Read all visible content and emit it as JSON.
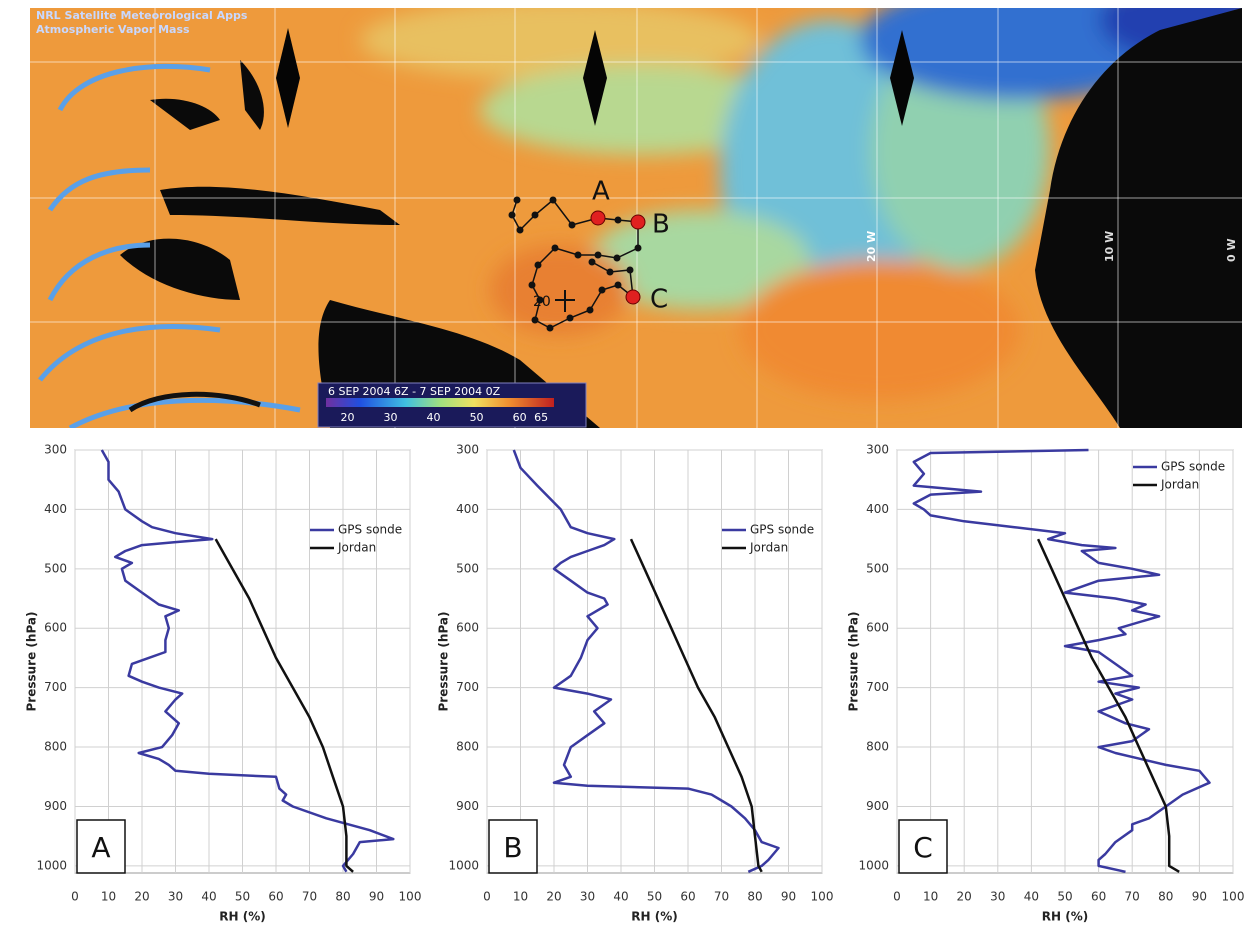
{
  "map": {
    "title": [
      "NRL Satellite Meteorological Apps",
      "Atmospheric Vapor Mass"
    ],
    "colorbar": {
      "label": "6 SEP 2004 6Z - 7 SEP 2004 0Z",
      "lim": [
        15,
        68
      ],
      "ticks": [
        20,
        30,
        40,
        50,
        60,
        65
      ]
    },
    "stations": [
      "A",
      "B",
      "C"
    ],
    "marker": "20",
    "longitudes": [
      "10 W",
      "0 W",
      "20 W"
    ]
  },
  "chart_data": [
    {
      "type": "line",
      "panel": "A",
      "xlabel": "RH (%)",
      "ylabel": "Pressure (hPa)",
      "xlim": [
        0,
        100
      ],
      "xticks": [
        0,
        10,
        20,
        30,
        40,
        50,
        60,
        70,
        80,
        90,
        100
      ],
      "ylim": [
        1012,
        300
      ],
      "yticks": [
        300,
        400,
        500,
        600,
        700,
        800,
        900,
        1000
      ],
      "grid": true,
      "legend": "center right",
      "series": [
        {
          "name": "GPS sonde",
          "color": "#3a3aa0",
          "x": [
            8,
            10,
            10,
            13,
            15,
            20,
            23,
            30,
            41,
            30,
            20,
            15,
            12,
            17,
            14,
            15,
            20,
            25,
            31,
            27,
            28,
            27,
            27,
            22,
            17,
            16,
            20,
            25,
            32,
            30,
            27,
            31,
            29,
            26,
            19,
            25,
            28,
            30,
            40,
            60,
            61,
            63,
            62,
            65,
            75,
            88,
            95,
            85,
            83,
            80,
            81
          ],
          "y": [
            300,
            320,
            350,
            370,
            400,
            420,
            430,
            440,
            450,
            455,
            460,
            470,
            480,
            490,
            500,
            520,
            540,
            560,
            570,
            580,
            600,
            620,
            640,
            650,
            660,
            680,
            690,
            700,
            710,
            720,
            740,
            760,
            780,
            800,
            810,
            820,
            830,
            840,
            845,
            850,
            870,
            880,
            890,
            900,
            920,
            940,
            955,
            960,
            980,
            1000,
            1010
          ]
        },
        {
          "name": "Jordan",
          "color": "#111111",
          "x": [
            42,
            47,
            52,
            56,
            60,
            65,
            70,
            74,
            77,
            80,
            81,
            81,
            83
          ],
          "y": [
            450,
            500,
            550,
            600,
            650,
            700,
            750,
            800,
            850,
            900,
            950,
            1000,
            1010
          ]
        }
      ]
    },
    {
      "type": "line",
      "panel": "B",
      "xlabel": "RH (%)",
      "ylabel": "Pressure (hPa)",
      "xlim": [
        0,
        100
      ],
      "xticks": [
        0,
        10,
        20,
        30,
        40,
        50,
        60,
        70,
        80,
        90,
        100
      ],
      "ylim": [
        1012,
        300
      ],
      "yticks": [
        300,
        400,
        500,
        600,
        700,
        800,
        900,
        1000
      ],
      "grid": true,
      "legend": "center right",
      "series": [
        {
          "name": "GPS sonde",
          "color": "#3a3aa0",
          "x": [
            8,
            10,
            15,
            22,
            25,
            30,
            38,
            35,
            30,
            25,
            22,
            20,
            25,
            30,
            35,
            36,
            30,
            33,
            30,
            28,
            25,
            20,
            30,
            37,
            32,
            35,
            30,
            25,
            23,
            25,
            20,
            30,
            60,
            67,
            70,
            73,
            77,
            80,
            82,
            87,
            84,
            82,
            78
          ],
          "y": [
            300,
            330,
            360,
            400,
            430,
            440,
            450,
            460,
            470,
            480,
            490,
            500,
            520,
            540,
            550,
            560,
            580,
            600,
            620,
            650,
            680,
            700,
            710,
            720,
            740,
            760,
            780,
            800,
            830,
            850,
            860,
            865,
            870,
            880,
            890,
            900,
            920,
            940,
            960,
            970,
            990,
            1000,
            1010
          ]
        },
        {
          "name": "Jordan",
          "color": "#111111",
          "x": [
            43,
            47,
            51,
            55,
            59,
            63,
            68,
            72,
            76,
            79,
            80,
            81,
            82
          ],
          "y": [
            450,
            500,
            550,
            600,
            650,
            700,
            750,
            800,
            850,
            900,
            950,
            1000,
            1010
          ]
        }
      ]
    },
    {
      "type": "line",
      "panel": "C",
      "xlabel": "RH (%)",
      "ylabel": "Pressure (hPa)",
      "xlim": [
        0,
        100
      ],
      "xticks": [
        0,
        10,
        20,
        30,
        40,
        50,
        60,
        70,
        80,
        90,
        100
      ],
      "ylim": [
        1012,
        300
      ],
      "yticks": [
        300,
        400,
        500,
        600,
        700,
        800,
        900,
        1000
      ],
      "grid": true,
      "legend": "upper right",
      "series": [
        {
          "name": "GPS sonde",
          "color": "#3a3aa0",
          "x": [
            57,
            10,
            5,
            8,
            5,
            25,
            10,
            5,
            8,
            10,
            20,
            35,
            50,
            45,
            55,
            65,
            55,
            60,
            70,
            78,
            60,
            50,
            65,
            74,
            70,
            78,
            66,
            68,
            60,
            50,
            60,
            65,
            70,
            60,
            72,
            65,
            70,
            60,
            68,
            75,
            70,
            60,
            65,
            80,
            90,
            93,
            85,
            80,
            75,
            70,
            70,
            65,
            62,
            60,
            60,
            68
          ],
          "y": [
            300,
            305,
            320,
            340,
            360,
            370,
            375,
            390,
            400,
            410,
            420,
            430,
            440,
            450,
            460,
            465,
            470,
            490,
            500,
            510,
            520,
            540,
            550,
            560,
            570,
            580,
            600,
            610,
            620,
            630,
            640,
            660,
            680,
            690,
            700,
            710,
            720,
            740,
            760,
            770,
            790,
            800,
            810,
            830,
            840,
            860,
            880,
            900,
            920,
            930,
            940,
            960,
            980,
            990,
            1000,
            1010
          ]
        },
        {
          "name": "Jordan",
          "color": "#111111",
          "x": [
            42,
            46,
            50,
            54,
            58,
            63,
            68,
            72,
            76,
            80,
            81,
            81,
            84
          ],
          "y": [
            450,
            500,
            550,
            600,
            650,
            700,
            750,
            800,
            850,
            900,
            950,
            1000,
            1010
          ]
        }
      ]
    }
  ]
}
